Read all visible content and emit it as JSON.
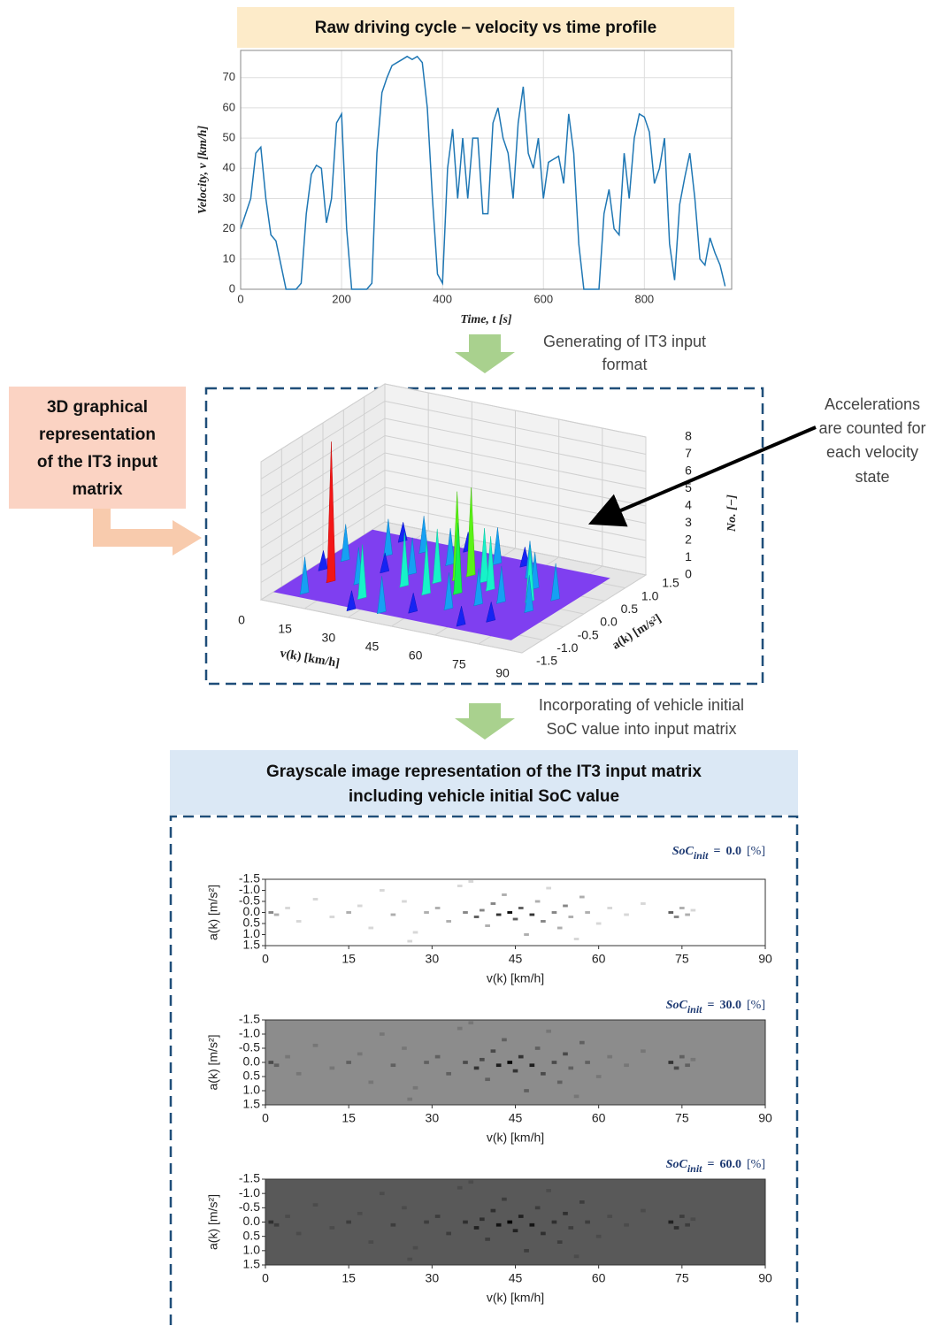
{
  "chart_data": [
    {
      "type": "line",
      "title": "Raw driving cycle – velocity vs time profile",
      "xlabel": "Time, t [s]",
      "ylabel": "Velocity, v [km/h]",
      "color": "#1f77b4",
      "grid": true,
      "xlim": [
        0,
        973
      ],
      "ylim": [
        0,
        79
      ],
      "xticks": [
        0,
        200,
        400,
        600,
        800
      ],
      "yticks": [
        0,
        10,
        20,
        30,
        40,
        50,
        60,
        70
      ],
      "x": [
        0,
        10,
        20,
        30,
        40,
        50,
        60,
        70,
        80,
        90,
        100,
        110,
        120,
        130,
        140,
        150,
        160,
        170,
        180,
        190,
        200,
        210,
        220,
        230,
        240,
        250,
        260,
        270,
        280,
        290,
        300,
        310,
        320,
        330,
        340,
        350,
        360,
        370,
        380,
        390,
        400,
        410,
        420,
        430,
        440,
        450,
        460,
        470,
        480,
        490,
        500,
        510,
        520,
        530,
        540,
        550,
        560,
        570,
        580,
        590,
        600,
        610,
        620,
        630,
        640,
        650,
        660,
        670,
        680,
        690,
        700,
        710,
        720,
        730,
        740,
        750,
        760,
        770,
        780,
        790,
        800,
        810,
        820,
        830,
        840,
        850,
        860,
        870,
        880,
        890,
        900,
        910,
        920,
        930,
        940,
        950,
        960
      ],
      "values": [
        20,
        25,
        30,
        45,
        47,
        30,
        18,
        16,
        8,
        0,
        0,
        0,
        2,
        25,
        38,
        41,
        40,
        22,
        30,
        55,
        58,
        20,
        0,
        0,
        0,
        0,
        2,
        45,
        65,
        70,
        74,
        75,
        76,
        77,
        76,
        77,
        75,
        60,
        30,
        5,
        2,
        40,
        53,
        30,
        50,
        30,
        50,
        50,
        25,
        25,
        55,
        60,
        50,
        45,
        30,
        55,
        67,
        45,
        40,
        50,
        30,
        42,
        43,
        44,
        35,
        58,
        45,
        15,
        0,
        0,
        0,
        0,
        25,
        33,
        20,
        18,
        45,
        30,
        50,
        58,
        57,
        52,
        35,
        40,
        50,
        15,
        3,
        28,
        37,
        45,
        30,
        10,
        8,
        17,
        12,
        8,
        1
      ]
    },
    {
      "type": "surface3d",
      "title": [
        "3D graphical",
        "representation",
        "of the IT3 input",
        "matrix"
      ],
      "xlabel": "v(k) [km/h]",
      "ylabel": "a(k) [m/s²]",
      "zlabel": "No. [−]",
      "xlim": [
        0,
        90
      ],
      "ylim": [
        -1.5,
        1.5
      ],
      "zlim": [
        0,
        8
      ],
      "xticks": [
        0,
        15,
        30,
        45,
        60,
        75,
        90
      ],
      "yticks": [
        -1.5,
        {
          "value": -1,
          "label": "-1.0"
        },
        -0.5,
        {
          "value": 0,
          "label": "0.0"
        },
        0.5,
        {
          "value": 1,
          "label": "1.0"
        },
        1.5
      ],
      "zticks": [
        0,
        1,
        2,
        3,
        4,
        5,
        6,
        7,
        8
      ],
      "peaks": [
        {
          "v": 10,
          "a": -0.5,
          "count": 8
        },
        {
          "v": 42,
          "a": 0.3,
          "count": 5
        },
        {
          "v": 44,
          "a": 0.5,
          "count": 5
        },
        {
          "v": 48,
          "a": -0.1,
          "count": 4
        },
        {
          "v": 70,
          "a": 0.1,
          "count": 3
        },
        {
          "v": 40,
          "a": -0.3,
          "count": 3
        },
        {
          "v": 5,
          "a": 0.2,
          "count": 2
        },
        {
          "v": 8,
          "a": -1,
          "count": 2
        },
        {
          "v": 14,
          "a": 0.6,
          "count": 2
        },
        {
          "v": 18,
          "a": -0.4,
          "count": 2
        },
        {
          "v": 22,
          "a": 0.9,
          "count": 2
        },
        {
          "v": 25,
          "a": -0.8,
          "count": 3
        },
        {
          "v": 28,
          "a": 0.2,
          "count": 2
        },
        {
          "v": 31,
          "a": -0.2,
          "count": 3
        },
        {
          "v": 34,
          "a": 0.7,
          "count": 2
        },
        {
          "v": 36,
          "a": -1.1,
          "count": 2
        },
        {
          "v": 38,
          "a": 0.1,
          "count": 3
        },
        {
          "v": 46,
          "a": 1,
          "count": 2
        },
        {
          "v": 50,
          "a": 0.4,
          "count": 3
        },
        {
          "v": 52,
          "a": -0.6,
          "count": 2
        },
        {
          "v": 55,
          "a": 0.2,
          "count": 3
        },
        {
          "v": 58,
          "a": -0.3,
          "count": 2
        },
        {
          "v": 60,
          "a": 0.8,
          "count": 2
        },
        {
          "v": 63,
          "a": -0.1,
          "count": 2
        },
        {
          "v": 66,
          "a": 0.5,
          "count": 2
        },
        {
          "v": 74,
          "a": -0.2,
          "count": 2
        },
        {
          "v": 76,
          "a": 0.3,
          "count": 2
        },
        {
          "v": 3,
          "a": -0.2,
          "count": 1
        },
        {
          "v": 12,
          "a": 1.1,
          "count": 1
        },
        {
          "v": 20,
          "a": 0.1,
          "count": 1
        },
        {
          "v": 27,
          "a": -1.2,
          "count": 1
        },
        {
          "v": 33,
          "a": 1.2,
          "count": 1
        },
        {
          "v": 44,
          "a": -0.9,
          "count": 1
        },
        {
          "v": 54,
          "a": 1.1,
          "count": 1
        },
        {
          "v": 62,
          "a": -1,
          "count": 1
        },
        {
          "v": 68,
          "a": -0.7,
          "count": 1
        }
      ]
    },
    {
      "type": "heatmap",
      "title": [
        "Grayscale image representation of the IT3 input matrix",
        "including vehicle initial SoC value"
      ],
      "xlabel": "v(k) [km/h]",
      "ylabel": "a(k) [m/s²]",
      "xlim": [
        0,
        90
      ],
      "ylim": [
        -1.5,
        1.5
      ],
      "xticks": [
        0,
        15,
        30,
        45,
        60,
        75,
        90
      ],
      "yticks": [
        -1.5,
        {
          "value": -1,
          "label": "-1.0"
        },
        -0.5,
        {
          "value": 0,
          "label": "0.0"
        },
        0.5,
        {
          "value": 1,
          "label": "1.0"
        },
        1.5
      ],
      "soc_name": "SoC",
      "soc_sub": "init",
      "soc_sep": "=",
      "soc_unit": "[%]",
      "panels": [
        {
          "soc": {
            "value": 0,
            "label": "0.0"
          },
          "background": "#ffffff"
        },
        {
          "soc": {
            "value": 30,
            "label": "30.0"
          },
          "background": "#8c8c8c"
        },
        {
          "soc": {
            "value": 60,
            "label": "60.0"
          },
          "background": "#595959"
        }
      ],
      "points": [
        {
          "v": 1,
          "a": 0,
          "count": 3
        },
        {
          "v": 2,
          "a": 0.1,
          "count": 2
        },
        {
          "v": 4,
          "a": -0.2,
          "count": 1
        },
        {
          "v": 6,
          "a": 0.4,
          "count": 1
        },
        {
          "v": 9,
          "a": -0.6,
          "count": 1
        },
        {
          "v": 12,
          "a": 0.2,
          "count": 1
        },
        {
          "v": 15,
          "a": 0,
          "count": 2
        },
        {
          "v": 17,
          "a": -0.3,
          "count": 1
        },
        {
          "v": 19,
          "a": 0.7,
          "count": 1
        },
        {
          "v": 21,
          "a": -1,
          "count": 1
        },
        {
          "v": 23,
          "a": 0.1,
          "count": 2
        },
        {
          "v": 25,
          "a": -0.5,
          "count": 1
        },
        {
          "v": 27,
          "a": 0.9,
          "count": 1
        },
        {
          "v": 29,
          "a": 0,
          "count": 2
        },
        {
          "v": 31,
          "a": -0.2,
          "count": 2
        },
        {
          "v": 33,
          "a": 0.4,
          "count": 2
        },
        {
          "v": 35,
          "a": -1.2,
          "count": 1
        },
        {
          "v": 36,
          "a": 0,
          "count": 3
        },
        {
          "v": 38,
          "a": 0.2,
          "count": 4
        },
        {
          "v": 39,
          "a": -0.1,
          "count": 3
        },
        {
          "v": 40,
          "a": 0.6,
          "count": 2
        },
        {
          "v": 41,
          "a": -0.4,
          "count": 3
        },
        {
          "v": 42,
          "a": 0.1,
          "count": 5
        },
        {
          "v": 43,
          "a": -0.8,
          "count": 2
        },
        {
          "v": 44,
          "a": 0,
          "count": 6
        },
        {
          "v": 45,
          "a": 0.3,
          "count": 4
        },
        {
          "v": 46,
          "a": -0.2,
          "count": 4
        },
        {
          "v": 47,
          "a": 1,
          "count": 2
        },
        {
          "v": 48,
          "a": 0.1,
          "count": 5
        },
        {
          "v": 49,
          "a": -0.5,
          "count": 2
        },
        {
          "v": 50,
          "a": 0.4,
          "count": 3
        },
        {
          "v": 51,
          "a": -1.1,
          "count": 1
        },
        {
          "v": 52,
          "a": 0,
          "count": 3
        },
        {
          "v": 53,
          "a": 0.7,
          "count": 2
        },
        {
          "v": 54,
          "a": -0.3,
          "count": 3
        },
        {
          "v": 55,
          "a": 0.2,
          "count": 2
        },
        {
          "v": 57,
          "a": -0.7,
          "count": 2
        },
        {
          "v": 58,
          "a": 0,
          "count": 2
        },
        {
          "v": 60,
          "a": 0.5,
          "count": 1
        },
        {
          "v": 62,
          "a": -0.2,
          "count": 1
        },
        {
          "v": 65,
          "a": 0.1,
          "count": 1
        },
        {
          "v": 68,
          "a": -0.4,
          "count": 1
        },
        {
          "v": 73,
          "a": 0,
          "count": 4
        },
        {
          "v": 74,
          "a": 0.2,
          "count": 3
        },
        {
          "v": 75,
          "a": -0.2,
          "count": 2
        },
        {
          "v": 76,
          "a": 0.1,
          "count": 2
        },
        {
          "v": 77,
          "a": -0.1,
          "count": 1
        },
        {
          "v": 26,
          "a": 1.3,
          "count": 1
        },
        {
          "v": 37,
          "a": -1.4,
          "count": 1
        },
        {
          "v": 56,
          "a": 1.2,
          "count": 1
        }
      ]
    }
  ],
  "flow": {
    "step1": [
      "Generating of IT3 input",
      "format"
    ],
    "callout": [
      "Accelerations",
      "are counted for",
      "each velocity",
      "state"
    ],
    "step2": [
      "Incorporating of vehicle initial",
      "SoC value into input matrix"
    ]
  }
}
